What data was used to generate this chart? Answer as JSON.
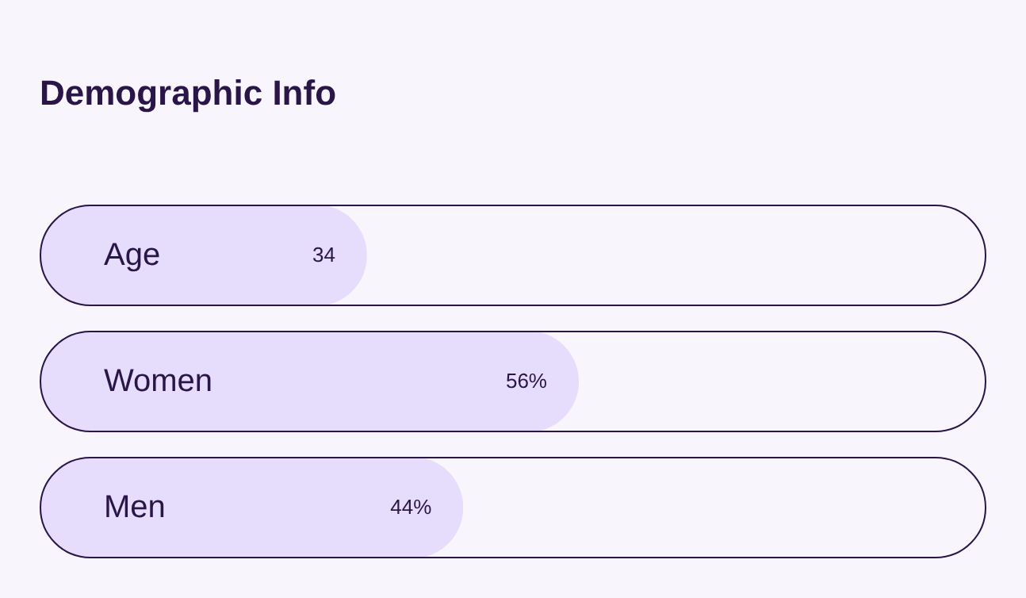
{
  "chart_data": {
    "type": "bar",
    "orientation": "horizontal",
    "title": "Demographic Info",
    "categories": [
      "Age",
      "Women",
      "Men"
    ],
    "values": [
      34,
      56,
      44
    ],
    "value_labels": [
      "34",
      "56%",
      "44%"
    ],
    "color": "#e6dcfb"
  }
}
